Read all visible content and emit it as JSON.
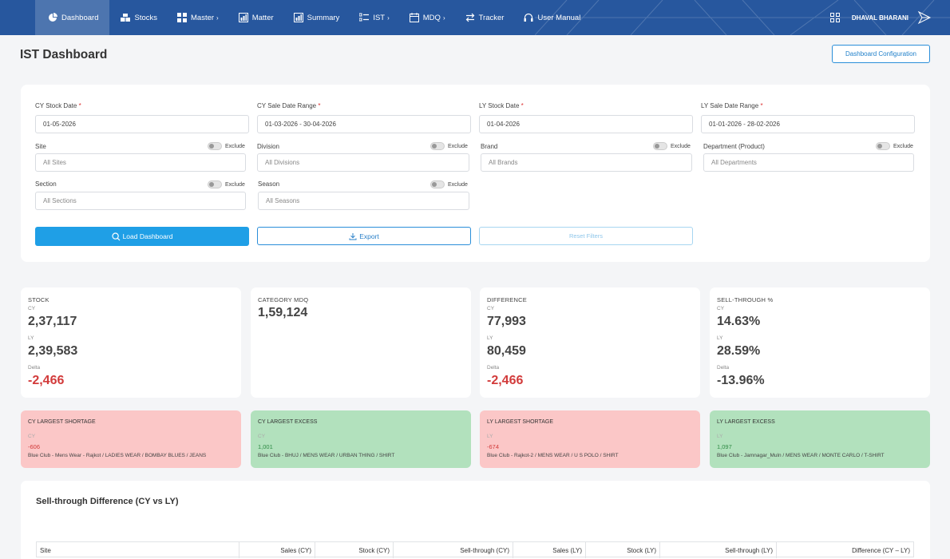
{
  "nav": {
    "items": [
      {
        "label": "Dashboard",
        "icon": "pie-chart-icon",
        "active": true
      },
      {
        "label": "Stocks",
        "icon": "boxes-icon"
      },
      {
        "label": "Master",
        "icon": "grid-icon",
        "caret": "›"
      },
      {
        "label": "Matter",
        "icon": "report-icon"
      },
      {
        "label": "Summary",
        "icon": "report-icon"
      },
      {
        "label": "IST",
        "icon": "list-icon",
        "caret": "›"
      },
      {
        "label": "MDQ",
        "icon": "calendar-icon",
        "caret": "›"
      },
      {
        "label": "Tracker",
        "icon": "transfer-icon"
      },
      {
        "label": "User Manual",
        "icon": "headset-icon"
      }
    ],
    "user_name": "DHAVAL BHARANI"
  },
  "header": {
    "title": "IST Dashboard",
    "config_button": "Dashboard Configuration"
  },
  "filters": {
    "cy_stock_date": {
      "label": "CY Stock Date",
      "required": "*",
      "value": "01-05-2026"
    },
    "cy_sale_range": {
      "label": "CY Sale Date Range",
      "required": "*",
      "value": "01-03-2026 - 30-04-2026"
    },
    "ly_stock_date": {
      "label": "LY Stock Date",
      "required": "*",
      "value": "01-04-2026"
    },
    "ly_sale_range": {
      "label": "LY Sale Date Range",
      "required": "*",
      "value": "01-01-2026 - 28-02-2026"
    },
    "site": {
      "label": "Site",
      "placeholder": "All Sites",
      "exclude": "Exclude"
    },
    "division": {
      "label": "Division",
      "placeholder": "All Divisions",
      "exclude": "Exclude"
    },
    "brand": {
      "label": "Brand",
      "placeholder": "All Brands",
      "exclude": "Exclude"
    },
    "department": {
      "label": "Department (Product)",
      "placeholder": "All Departments",
      "exclude": "Exclude"
    },
    "section": {
      "label": "Section",
      "placeholder": "All Sections",
      "exclude": "Exclude"
    },
    "season": {
      "label": "Season",
      "placeholder": "All Seasons",
      "exclude": "Exclude"
    },
    "load_button": "Load Dashboard",
    "export_button": "Export",
    "reset_button": "Reset Filters"
  },
  "kpi": {
    "stock": {
      "title": "STOCK",
      "cy_label": "CY",
      "cy": "2,37,117",
      "ly_label": "LY",
      "ly": "2,39,583",
      "delta_label": "Delta",
      "delta": "-2,466"
    },
    "category_mdq": {
      "title": "CATEGORY MDQ",
      "value": "1,59,124"
    },
    "difference": {
      "title": "DIFFERENCE",
      "cy_label": "CY",
      "cy": "77,993",
      "ly_label": "LY",
      "ly": "80,459",
      "delta_label": "Delta",
      "delta": "-2,466"
    },
    "sell_through": {
      "title": "SELL-THROUGH %",
      "cy_label": "CY",
      "cy": "14.63%",
      "ly_label": "LY",
      "ly": "28.59%",
      "delta_label": "Delta",
      "delta": "-13.96%"
    }
  },
  "highlights": [
    {
      "title": "CY LARGEST SHORTAGE",
      "sub": "CY",
      "value": "-606",
      "detail": "Blue Club - Mens Wear - Rajkot / LADIES WEAR / BOMBAY BLUES / JEANS",
      "tone": "red"
    },
    {
      "title": "CY LARGEST EXCESS",
      "sub": "CY",
      "value": "1,001",
      "detail": "Blue Club - BHUJ / MENS WEAR / URBAN THING / SHIRT",
      "tone": "green"
    },
    {
      "title": "LY LARGEST SHORTAGE",
      "sub": "LY",
      "value": "-674",
      "detail": "Blue Club - Rajkot-2 / MENS WEAR / U S POLO / SHIRT",
      "tone": "red"
    },
    {
      "title": "LY LARGEST EXCESS",
      "sub": "LY",
      "value": "1,097",
      "detail": "Blue Club - Jamnagar_Muln / MENS WEAR / MONTE CARLO / T-SHIRT",
      "tone": "green"
    }
  ],
  "table": {
    "title": "Sell-through Difference (CY vs LY)",
    "columns": [
      "Site",
      "Sales (CY)",
      "Stock (CY)",
      "Sell-through (CY)",
      "Sales (LY)",
      "Stock (LY)",
      "Sell-through (LY)",
      "Difference (CY – LY)"
    ]
  },
  "colors": {
    "topbar": "#27579e",
    "accent": "#1f9fe6",
    "negative": "#d23b3b",
    "shortage_bg": "#fbc7c7",
    "excess_bg": "#b2e1bd"
  }
}
